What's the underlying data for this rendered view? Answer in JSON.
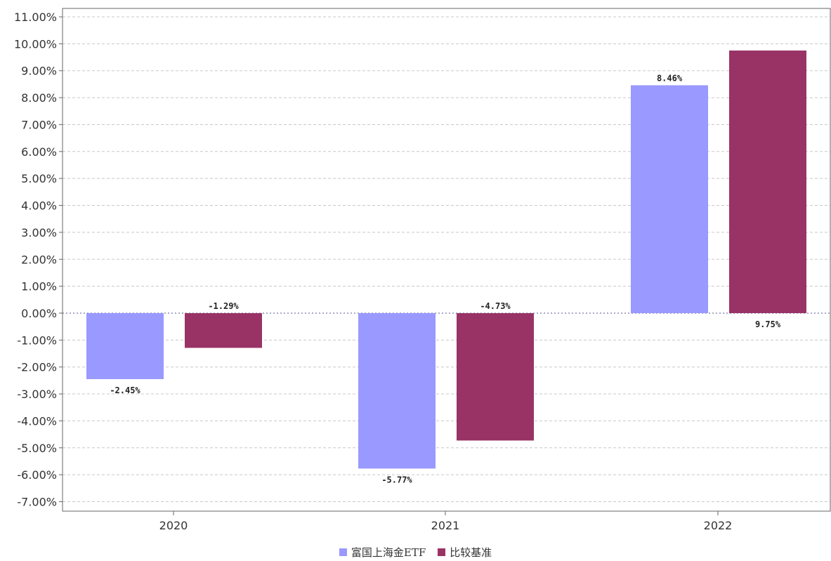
{
  "chart_data": {
    "type": "bar",
    "categories": [
      "2020",
      "2021",
      "2022"
    ],
    "series": [
      {
        "name": "富国上海金ETF",
        "color": "#9999ff",
        "values": [
          -2.45,
          -5.77,
          8.46
        ],
        "labels": [
          "-2.45%",
          "-5.77%",
          "8.46%"
        ]
      },
      {
        "name": "比较基准",
        "color": "#993366",
        "values": [
          -1.29,
          -4.73,
          9.75
        ],
        "labels": [
          "-1.29%",
          "-4.73%",
          "9.75%"
        ]
      }
    ],
    "ylim": [
      -7,
      11
    ],
    "yticks": [
      "11.00%",
      "10.00%",
      "9.00%",
      "8.00%",
      "7.00%",
      "6.00%",
      "5.00%",
      "4.00%",
      "3.00%",
      "2.00%",
      "1.00%",
      "0.00%",
      "-1.00%",
      "-2.00%",
      "-3.00%",
      "-4.00%",
      "-5.00%",
      "-6.00%",
      "-7.00%"
    ],
    "grid": true,
    "legend_position": "bottom-center"
  }
}
